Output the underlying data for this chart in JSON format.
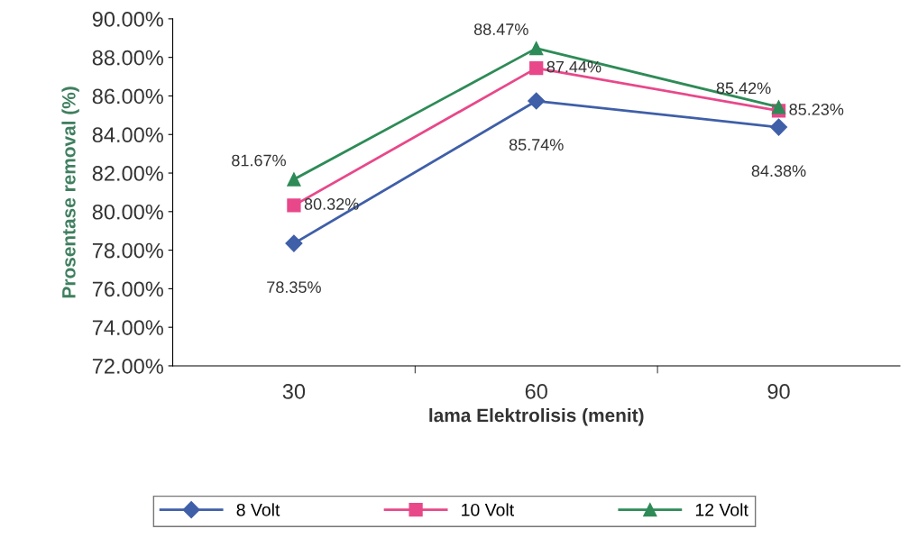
{
  "chart_data": {
    "type": "line",
    "xlabel": "lama Elektrolisis (menit)",
    "ylabel": "Prosentase removal (%)",
    "categories": [
      "30",
      "60",
      "90"
    ],
    "series": [
      {
        "name": "8 Volt",
        "color": "#3f5fa8",
        "marker": "diamond",
        "values": [
          78.35,
          85.74,
          84.38
        ],
        "value_labels": [
          "78.35%",
          "85.74%",
          "84.38%"
        ]
      },
      {
        "name": "10 Volt",
        "color": "#e8488a",
        "marker": "square",
        "values": [
          80.32,
          87.44,
          85.23
        ],
        "value_labels": [
          "80.32%",
          "87.44%",
          "85.23%"
        ]
      },
      {
        "name": "12 Volt",
        "color": "#2e8b57",
        "marker": "triangle",
        "values": [
          81.67,
          88.47,
          85.42
        ],
        "value_labels": [
          "81.67%",
          "88.47%",
          "85.42%"
        ]
      }
    ],
    "ylim": [
      72,
      90
    ],
    "yticks": [
      {
        "value": 72,
        "label": "72.00%"
      },
      {
        "value": 74,
        "label": "74.00%"
      },
      {
        "value": 76,
        "label": "76.00%"
      },
      {
        "value": 78,
        "label": "78.00%"
      },
      {
        "value": 80,
        "label": "80.00%"
      },
      {
        "value": 82,
        "label": "82.00%"
      },
      {
        "value": 84,
        "label": "84.00%"
      },
      {
        "value": 86,
        "label": "86.00%"
      },
      {
        "value": 88,
        "label": "88.00%"
      },
      {
        "value": 90,
        "label": "90.00%"
      }
    ],
    "grid": false,
    "legend": "bottom",
    "line_style": "solid"
  }
}
